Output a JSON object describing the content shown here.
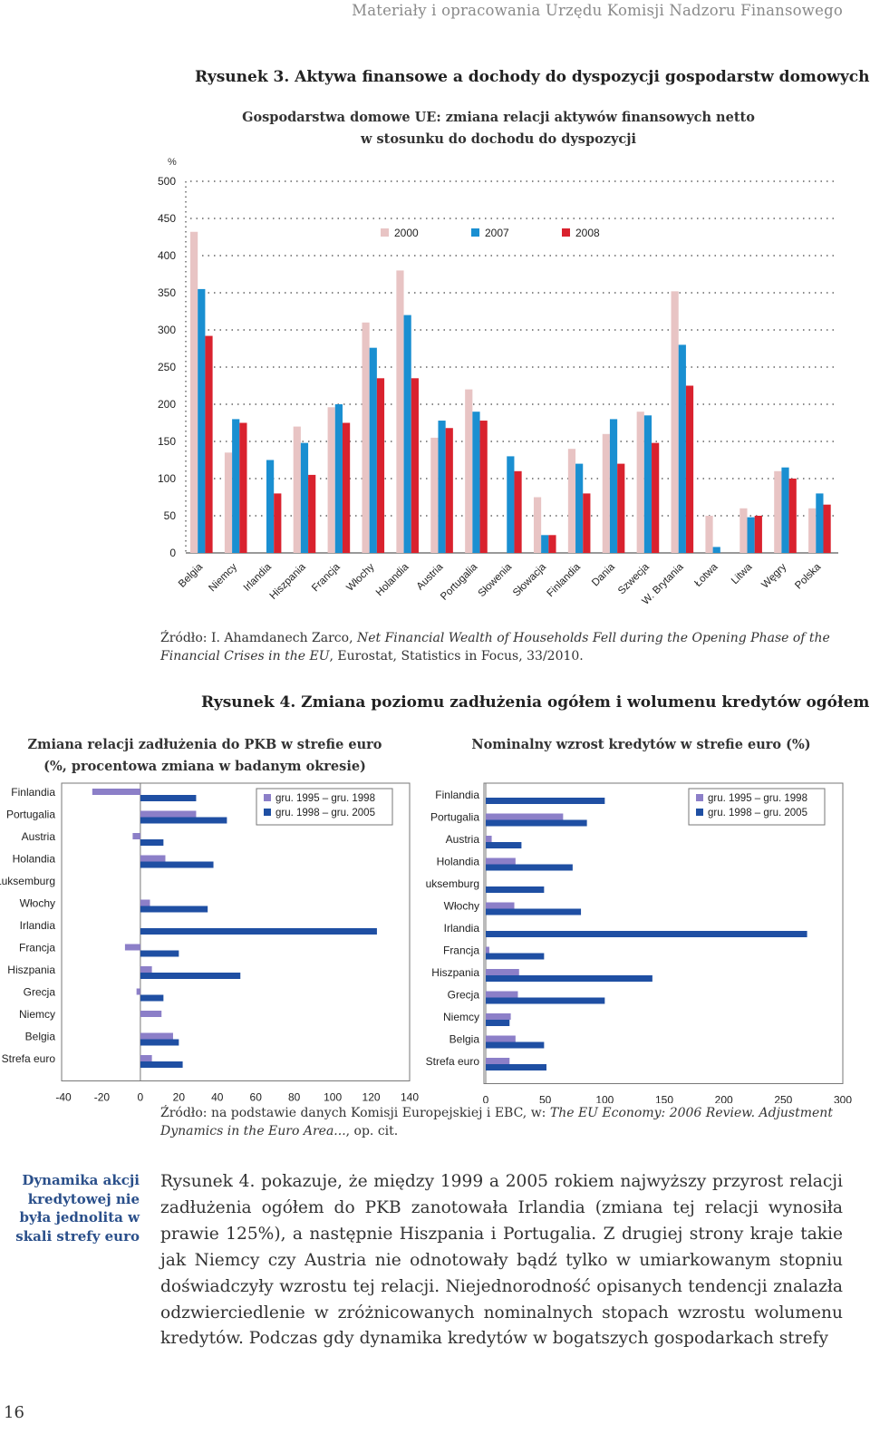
{
  "header": {
    "running_title": "Materiały i opracowania Urzędu Komisji Nadzoru Finansowego"
  },
  "figure3": {
    "title": "Rysunek 3. Aktywa finansowe a dochody do dyspozycji gospodarstw domowych",
    "subtitle_line1": "Gospodarstwa domowe UE: zmiana relacji aktywów finansowych netto",
    "subtitle_line2": "w stosunku do dochodu do dyspozycji",
    "source_prefix": "Źródło: I. Ahamdanech Zarco, ",
    "source_italic": "Net Financial Wealth of Households Fell during the Opening Phase of the Financial Crises in the EU",
    "source_suffix": ", Eurostat, Statistics in Focus, 33/2010."
  },
  "figure4": {
    "title": "Rysunek 4. Zmiana poziomu zadłużenia ogółem i wolumenu kredytów ogółem",
    "left_subtitle_line1": "Zmiana relacji zadłużenia do PKB w strefie euro",
    "left_subtitle_line2": "(%, procentowa zmiana w badanym okresie)",
    "right_subtitle": "Nominalny wzrost kredytów w strefie euro (%)",
    "source_prefix": "Źródło: na podstawie danych Komisji Europejskiej i EBC, w: ",
    "source_italic": "The EU Economy: 2006 Review. Adjustment Dynamics in the Euro Area...",
    "source_suffix": ", op. cit."
  },
  "sidenote": {
    "text": "Dynamika akcji kredytowej nie była jednolita w skali strefy euro"
  },
  "body": {
    "paragraph": "Rysunek 4. pokazuje, że między 1999 a 2005 rokiem najwyższy przyrost relacji zadłużenia ogółem do PKB zanotowała Irlandia (zmiana tej relacji wynosiła prawie 125%), a następnie Hiszpania i Portugalia. Z drugiej strony kraje takie jak Niemcy czy Austria nie odnotowały bądź tylko w umiarkowanym stopniu doświadczyły wzrostu tej relacji. Niejednorodność opisanych tendencji znalazła odzwierciedlenie w zróżnicowanych nominalnych stopach wzrostu wolumenu kredytów. Podczas gdy dynamika kredytów w bogatszych gospodarkach strefy"
  },
  "page": {
    "number": "16"
  },
  "colors": {
    "c2000": "#e8c4c4",
    "c2007": "#1a8fd1",
    "c2008": "#d9222e",
    "violet": "#8c7fc8",
    "navy": "#1f4fa3"
  },
  "chart_data": [
    {
      "type": "bar",
      "ylabel": "%",
      "ylim": [
        0,
        500
      ],
      "yticks": [
        0,
        50,
        100,
        150,
        200,
        250,
        300,
        350,
        400,
        450,
        500
      ],
      "categories": [
        "Belgia",
        "Niemcy",
        "Irlandia",
        "Hiszpania",
        "Francja",
        "Włochy",
        "Holandia",
        "Austria",
        "Portugalia",
        "Słowenia",
        "Słowacja",
        "Finlandia",
        "Dania",
        "Szwecja",
        "W. Brytania",
        "Łotwa",
        "Litwa",
        "Węgry",
        "Polska"
      ],
      "series": [
        {
          "name": "2000",
          "values": [
            432,
            135,
            null,
            170,
            196,
            310,
            380,
            155,
            220,
            null,
            75,
            140,
            160,
            190,
            352,
            50,
            60,
            110,
            60
          ]
        },
        {
          "name": "2007",
          "values": [
            355,
            180,
            125,
            148,
            200,
            276,
            320,
            178,
            190,
            130,
            24,
            120,
            180,
            185,
            280,
            8,
            48,
            115,
            80
          ]
        },
        {
          "name": "2008",
          "values": [
            292,
            175,
            80,
            105,
            175,
            235,
            235,
            168,
            178,
            110,
            24,
            80,
            120,
            148,
            225,
            null,
            50,
            100,
            65
          ]
        }
      ],
      "legend": "top-center",
      "grid": true
    },
    {
      "type": "bar",
      "orientation": "horizontal",
      "categories": [
        "Finlandia",
        "Portugalia",
        "Austria",
        "Holandia",
        "Luksemburg",
        "Włochy",
        "Irlandia",
        "Francja",
        "Hiszpania",
        "Grecja",
        "Niemcy",
        "Belgia",
        "Strefa euro"
      ],
      "xlim": [
        -40,
        140
      ],
      "xticks": [
        -40,
        -20,
        0,
        20,
        40,
        60,
        80,
        100,
        120,
        140
      ],
      "series": [
        {
          "name": "gru. 1995 – gru. 1998",
          "values": [
            -25,
            29,
            -4,
            13,
            null,
            5,
            null,
            -8,
            6,
            -2,
            11,
            17,
            6
          ]
        },
        {
          "name": "gru. 1998 – gru. 2005",
          "values": [
            29,
            45,
            12,
            38,
            null,
            35,
            123,
            20,
            52,
            12,
            null,
            20,
            22
          ]
        }
      ],
      "legend": "top-right"
    },
    {
      "type": "bar",
      "orientation": "horizontal",
      "categories": [
        "Finlandia",
        "Portugalia",
        "Austria",
        "Holandia",
        "Luksemburg",
        "Włochy",
        "Irlandia",
        "Francja",
        "Hiszpania",
        "Grecja",
        "Niemcy",
        "Belgia",
        "Strefa euro"
      ],
      "xlim": [
        0,
        300
      ],
      "xticks": [
        0,
        50,
        100,
        150,
        200,
        250,
        300
      ],
      "series": [
        {
          "name": "gru. 1995 – gru. 1998",
          "values": [
            null,
            65,
            5,
            25,
            null,
            24,
            null,
            3,
            28,
            27,
            21,
            25,
            20
          ]
        },
        {
          "name": "gru. 1998 – gru. 2005",
          "values": [
            100,
            85,
            30,
            73,
            49,
            80,
            270,
            49,
            140,
            100,
            20,
            49,
            51
          ]
        }
      ],
      "legend": "top-right"
    }
  ]
}
